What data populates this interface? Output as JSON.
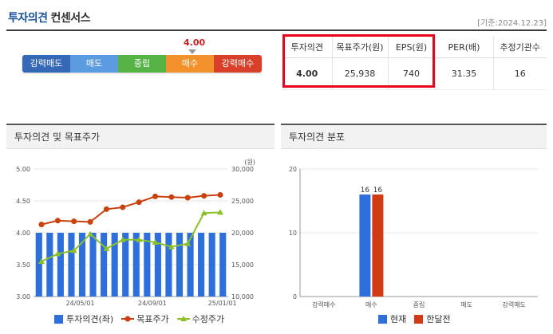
{
  "header": {
    "title": "투자의견",
    "subtitle": "컨센서스",
    "date": "[기준:2024.12.23]"
  },
  "opinion": {
    "value": "4.00",
    "segments": [
      "강력매도",
      "매도",
      "중립",
      "매수",
      "강력매수"
    ]
  },
  "summary": {
    "headers": [
      "투자의견",
      "목표주가(원)",
      "EPS(원)",
      "PER(배)",
      "추정기관수"
    ],
    "values": [
      "4.00",
      "25,938",
      "740",
      "31.35",
      "16"
    ]
  },
  "panel1": {
    "title": "투자의견 및 목표주가"
  },
  "panel2": {
    "title": "투자의견 분포"
  },
  "colors": {
    "bar_blue": "#2f6fdb",
    "line_red": "#c9410e",
    "line_green": "#8bbf2c",
    "prev_red": "#d03a14"
  },
  "chart_data": [
    {
      "type": "bar+line",
      "title": "",
      "xlabel": "",
      "y_left": {
        "ticks": [
          "3.00",
          "3.50",
          "4.00",
          "4.50",
          "5.00"
        ],
        "range": [
          3.0,
          5.0
        ]
      },
      "y_right": {
        "unit": "(원)",
        "ticks": [
          "10,000",
          "15,000",
          "20,000",
          "25,000",
          "30,000"
        ],
        "range": [
          10000,
          30000
        ]
      },
      "x_ticks": [
        "24/05/01",
        "24/09/01",
        "25/01/01"
      ],
      "series": [
        {
          "name": "투자의견(좌)",
          "kind": "bar",
          "axis": "left",
          "values": [
            4,
            4,
            4,
            4,
            4,
            4,
            4,
            4,
            4,
            4,
            4,
            4,
            4,
            4,
            4,
            4,
            4,
            4
          ]
        },
        {
          "name": "목표주가",
          "kind": "line",
          "axis": "right",
          "values": [
            21300,
            21900,
            21800,
            21700,
            23700,
            24000,
            24800,
            25700,
            25600,
            25500,
            25800,
            25938
          ]
        },
        {
          "name": "수정주가",
          "kind": "line",
          "axis": "right",
          "values": [
            15500,
            16700,
            17200,
            19800,
            17500,
            18900,
            18900,
            18500,
            17800,
            18300,
            23100,
            23200
          ]
        }
      ]
    },
    {
      "type": "bar",
      "title": "",
      "categories": [
        "강력매수",
        "매수",
        "중립",
        "매도",
        "강력매도"
      ],
      "y_ticks": [
        "0",
        "10",
        "20"
      ],
      "ylim": [
        0,
        20
      ],
      "series": [
        {
          "name": "현재",
          "values": [
            0,
            16,
            0,
            0,
            0
          ]
        },
        {
          "name": "한달전",
          "values": [
            0,
            16,
            0,
            0,
            0
          ]
        }
      ],
      "data_labels": [
        "16",
        "16"
      ]
    }
  ]
}
